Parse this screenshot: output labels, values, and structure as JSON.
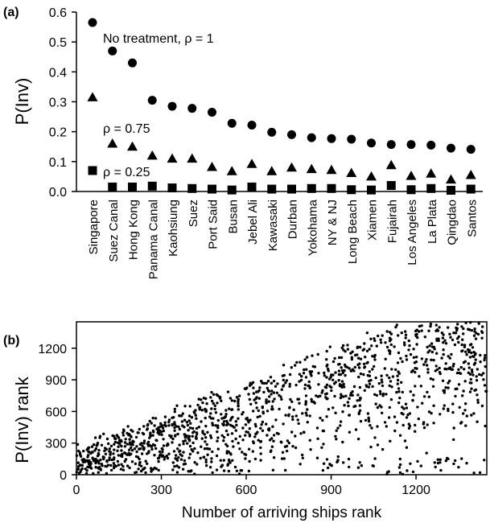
{
  "chart_data": [
    {
      "panel": "(a)",
      "type": "scatter",
      "ylabel": "P(Inv)",
      "ylim": [
        0,
        0.6
      ],
      "yticks": [
        "0.0",
        "0.1",
        "0.2",
        "0.3",
        "0.4",
        "0.5",
        "0.6"
      ],
      "grid": false,
      "categories": [
        "Singapore",
        "Suez Canal",
        "Hong Kong",
        "Panama Canal",
        "Kaohsiung",
        "Suez",
        "Port Said",
        "Busan",
        "Jebel Ali",
        "Kawasaki",
        "Durban",
        "Yokohama",
        "NY & NJ",
        "Long Beach",
        "Xiamen",
        "Fujairah",
        "Los Angeles",
        "La Plata",
        "Qingdao",
        "Santos"
      ],
      "series": [
        {
          "name": "No treatment, ρ = 1",
          "marker": "circle",
          "values": [
            0.565,
            0.47,
            0.43,
            0.305,
            0.285,
            0.278,
            0.265,
            0.228,
            0.222,
            0.198,
            0.19,
            0.18,
            0.177,
            0.175,
            0.162,
            0.157,
            0.157,
            0.155,
            0.145,
            0.141
          ]
        },
        {
          "name": "ρ = 0.75",
          "marker": "triangle",
          "values": [
            0.315,
            0.16,
            0.15,
            0.12,
            0.11,
            0.11,
            0.082,
            0.068,
            0.092,
            0.068,
            0.08,
            0.075,
            0.072,
            0.062,
            0.05,
            0.088,
            0.052,
            0.06,
            0.04,
            0.055
          ]
        },
        {
          "name": "ρ = 0.25",
          "marker": "square",
          "values": [
            0.07,
            0.015,
            0.015,
            0.018,
            0.012,
            0.01,
            0.008,
            0.005,
            0.015,
            0.008,
            0.008,
            0.01,
            0.01,
            0.006,
            0.005,
            0.02,
            0.006,
            0.01,
            0.004,
            0.008
          ]
        }
      ]
    },
    {
      "panel": "(b)",
      "type": "scatter",
      "xlabel": "Number of arriving ships rank",
      "ylabel": "P(Inv) rank",
      "xlim": [
        0,
        1450
      ],
      "ylim": [
        0,
        1450
      ],
      "xticks": [
        "0",
        "300",
        "600",
        "900",
        "1200"
      ],
      "yticks": [
        "0",
        "300",
        "600",
        "900",
        "1200"
      ],
      "grid": false,
      "point_count": 1400,
      "description": "ranks of roughly 1400 ports; points concentrate below the diagonal with increasing spread"
    }
  ]
}
